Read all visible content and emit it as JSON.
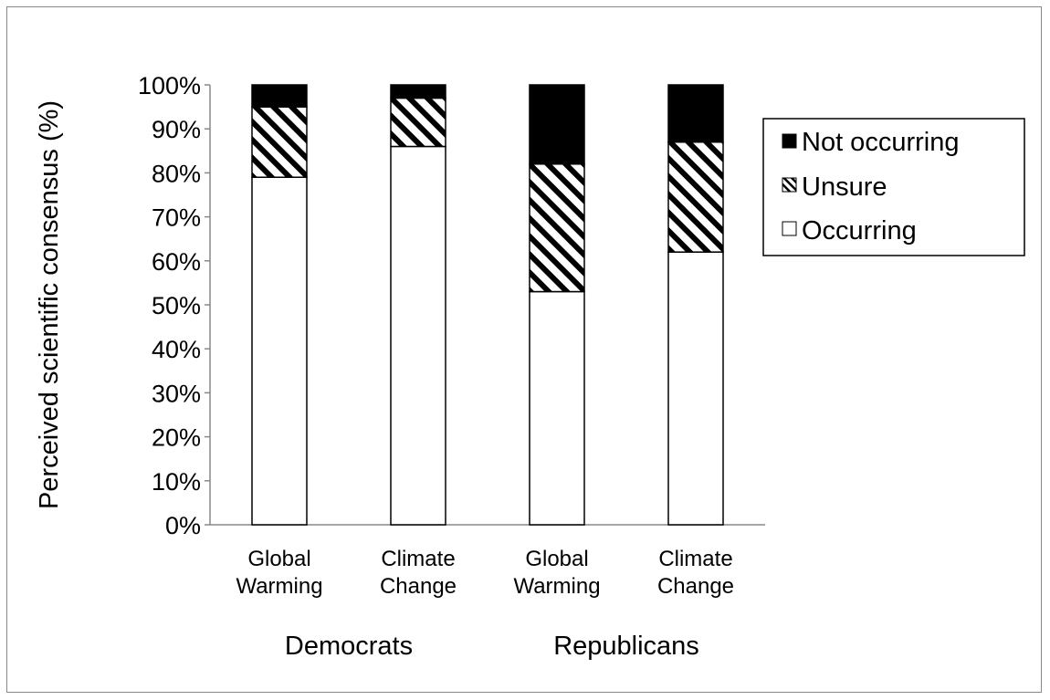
{
  "chart_data": {
    "type": "bar",
    "stacked": true,
    "percent_stacked": true,
    "title": "",
    "xlabel": "",
    "ylabel": "Perceived scientific consensus (%)",
    "ylim": [
      0,
      100
    ],
    "y_ticks": [
      "0%",
      "10%",
      "20%",
      "30%",
      "40%",
      "50%",
      "60%",
      "70%",
      "80%",
      "90%",
      "100%"
    ],
    "categories": [
      "Global Warming",
      "Climate Change",
      "Global Warming",
      "Climate Change"
    ],
    "category_lines": [
      [
        "Global",
        "Warming"
      ],
      [
        "Climate",
        "Change"
      ],
      [
        "Global",
        "Warming"
      ],
      [
        "Climate",
        "Change"
      ]
    ],
    "groups": [
      {
        "label": "Democrats",
        "categories": [
          0,
          1
        ]
      },
      {
        "label": "Republicans",
        "categories": [
          2,
          3
        ]
      }
    ],
    "series": [
      {
        "name": "Occurring",
        "fill": "white",
        "values": [
          79,
          86,
          53,
          62
        ]
      },
      {
        "name": "Unsure",
        "fill": "hatched",
        "values": [
          16,
          11,
          29,
          25
        ]
      },
      {
        "name": "Not occurring",
        "fill": "black",
        "values": [
          5,
          3,
          18,
          13
        ]
      }
    ],
    "legend": {
      "placement": "right",
      "order": [
        "Not occurring",
        "Unsure",
        "Occurring"
      ]
    },
    "grid": false,
    "colors": {
      "outline": "#000000",
      "solid": "#000000",
      "empty": "#ffffff",
      "axis": "#888888"
    }
  }
}
